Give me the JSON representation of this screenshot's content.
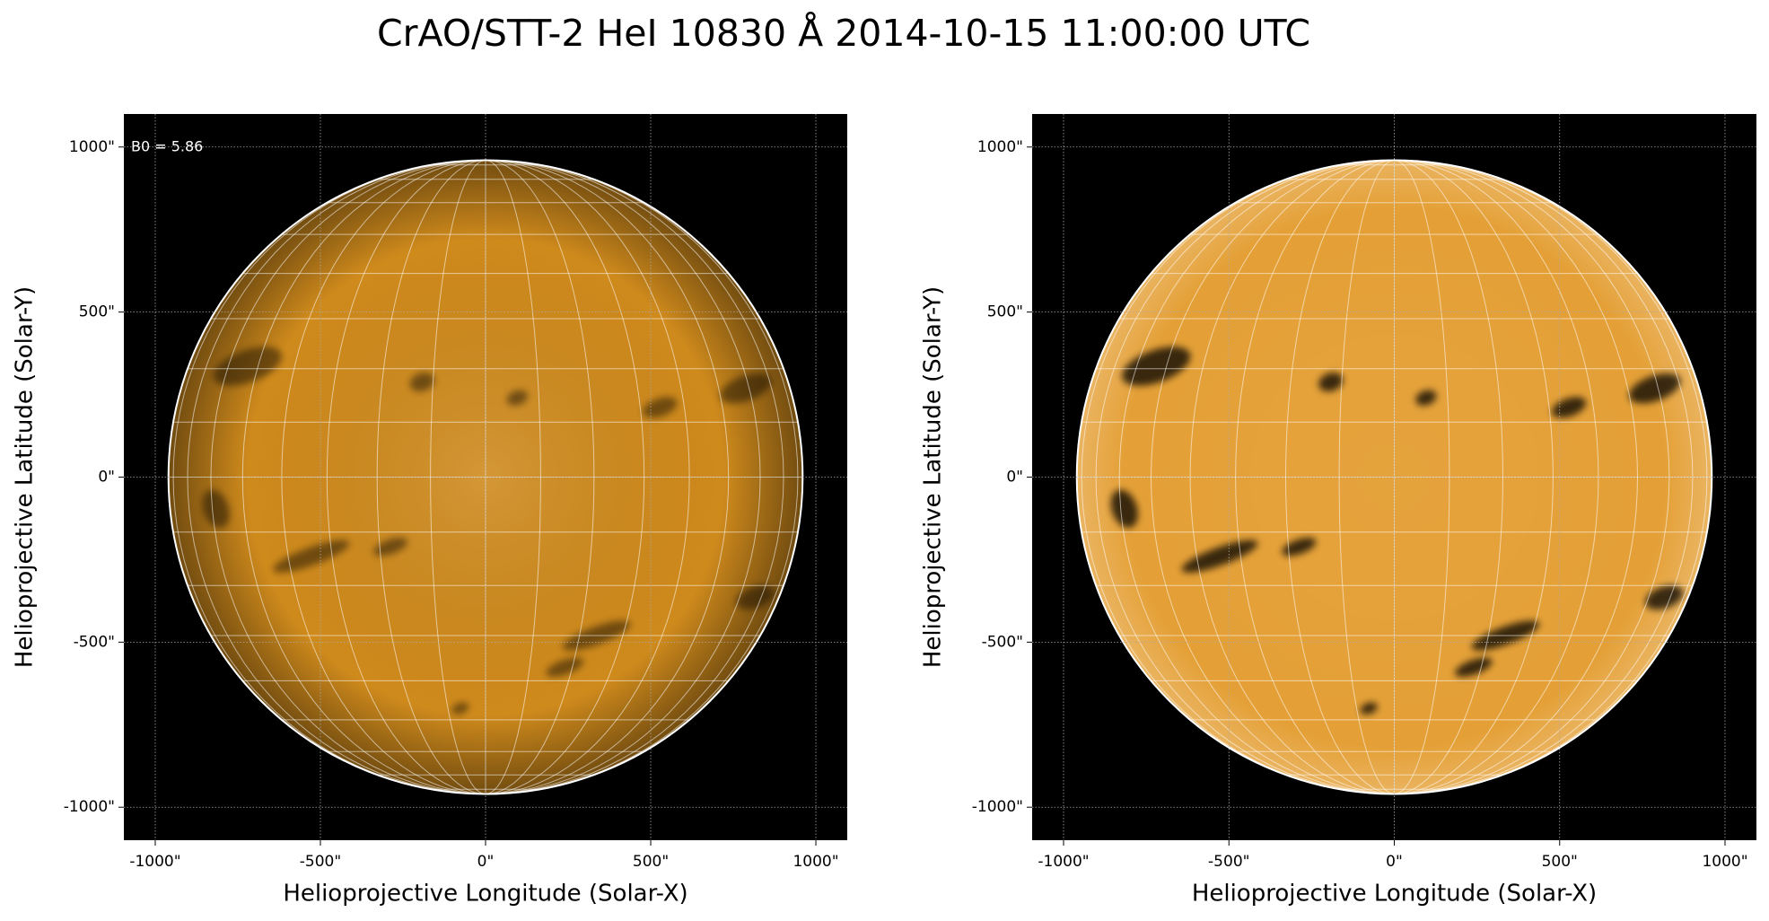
{
  "title": "CrAO/STT-2 HeI 10830 Å 2014-10-15 11:00:00 UTC",
  "chart_data": [
    {
      "type": "image",
      "xlabel": "Helioprojective Longitude (Solar-X)",
      "ylabel": "Helioprojective Latitude (Solar-Y)",
      "annotation": "B0 = 5.86",
      "color": "#cf8a1c",
      "disk_radius": 960,
      "xlim": [
        -1095,
        1095
      ],
      "ylim": [
        -1100,
        1100
      ],
      "grid": true,
      "xticks": [
        {
          "value": -1000,
          "label": "-1000\""
        },
        {
          "value": -500,
          "label": "-500\""
        },
        {
          "value": 0,
          "label": "0\""
        },
        {
          "value": 500,
          "label": "500\""
        },
        {
          "value": 1000,
          "label": "1000\""
        }
      ],
      "yticks": [
        {
          "value": -1000,
          "label": "-1000\""
        },
        {
          "value": -500,
          "label": "-500\""
        },
        {
          "value": 0,
          "label": "0\""
        },
        {
          "value": 500,
          "label": "500\""
        },
        {
          "value": 1000,
          "label": "1000\""
        }
      ]
    },
    {
      "type": "image",
      "xlabel": "Helioprojective Longitude (Solar-X)",
      "ylabel": "Helioprojective Latitude (Solar-Y)",
      "color": "#e39b2c",
      "disk_radius": 960,
      "xlim": [
        -1095,
        1095
      ],
      "ylim": [
        -1100,
        1100
      ],
      "grid": true,
      "xticks": [
        {
          "value": -1000,
          "label": "-1000\""
        },
        {
          "value": -500,
          "label": "-500\""
        },
        {
          "value": 0,
          "label": "0\""
        },
        {
          "value": 500,
          "label": "500\""
        },
        {
          "value": 1000,
          "label": "1000\""
        }
      ],
      "yticks": [
        {
          "value": -1000,
          "label": "-1000\""
        },
        {
          "value": -500,
          "label": "-500\""
        },
        {
          "value": 0,
          "label": "0\""
        },
        {
          "value": 500,
          "label": "500\""
        },
        {
          "value": 1000,
          "label": "1000\""
        }
      ]
    }
  ]
}
